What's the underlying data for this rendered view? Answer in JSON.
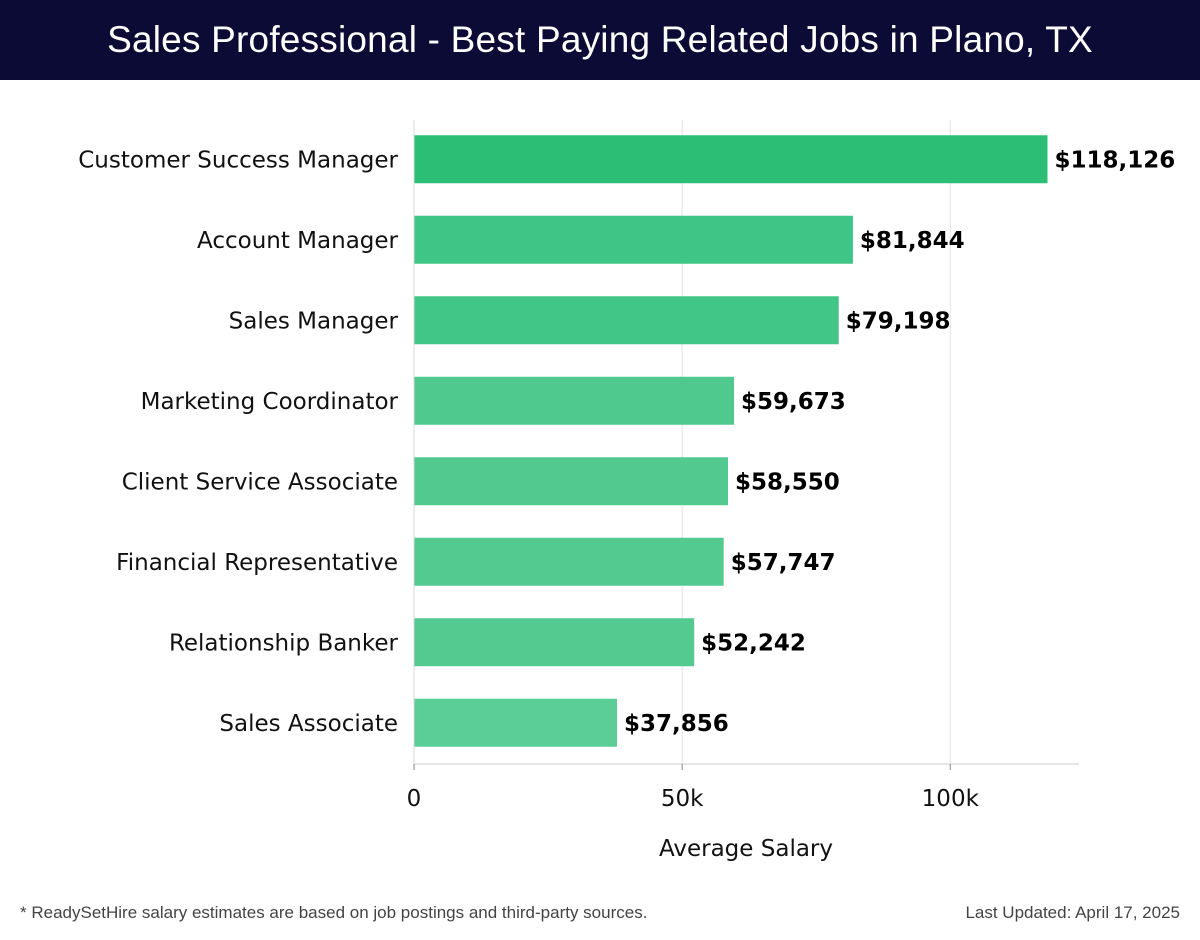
{
  "header": {
    "title": "Sales Professional - Best Paying Related Jobs in Plano, TX",
    "background": "#0b0b35"
  },
  "chart_data": {
    "type": "bar",
    "orientation": "horizontal",
    "title": "Sales Professional - Best Paying Related Jobs in Plano, TX",
    "categories": [
      "Customer Success Manager",
      "Account Manager",
      "Sales Manager",
      "Marketing Coordinator",
      "Client Service Associate",
      "Financial Representative",
      "Relationship Banker",
      "Sales Associate"
    ],
    "values": [
      118126,
      81844,
      79198,
      59673,
      58550,
      57747,
      52242,
      37856
    ],
    "value_labels": [
      "$118,126",
      "$81,844",
      "$79,198",
      "$59,673",
      "$58,550",
      "$57,747",
      "$52,242",
      "$37,856"
    ],
    "colors": [
      "#2bbf76",
      "#3fc585",
      "#42c687",
      "#50c98f",
      "#51c98f",
      "#52ca90",
      "#54ca91",
      "#5bcd96"
    ],
    "xlabel": "Average Salary",
    "ylabel": "",
    "xlim": [
      0,
      124000
    ],
    "xticks": [
      0,
      50000,
      100000
    ],
    "xtick_labels": [
      "0",
      "50k",
      "100k"
    ],
    "grid": true
  },
  "footer": {
    "note": "* ReadySetHire salary estimates are based on job postings and third-party sources.",
    "updated": "Last Updated: April 17, 2025"
  }
}
